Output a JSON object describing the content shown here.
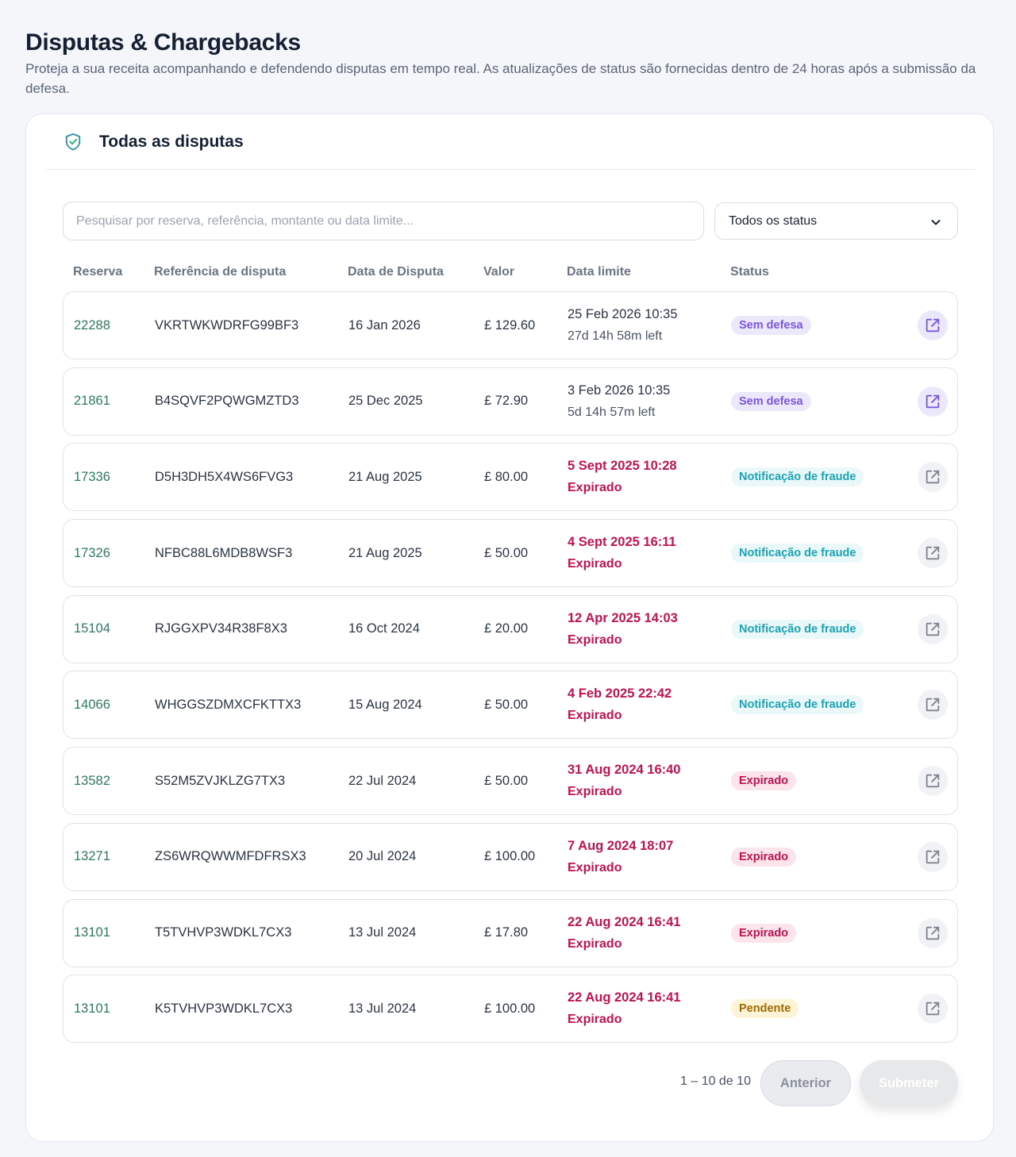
{
  "header": {
    "title": "Disputas & Chargebacks",
    "subtitle": "Proteja a sua receita acompanhando e defendendo disputas em tempo real. As atualizações de status são fornecidas dentro de 24 horas após a submissão da defesa."
  },
  "card": {
    "title": "Todas as disputas",
    "icon": "shield-check-icon"
  },
  "search": {
    "placeholder": "Pesquisar por reserva, referência, montante ou data limite...",
    "value": ""
  },
  "status_filter": {
    "selected": "Todos os status"
  },
  "columns": {
    "reserva": "Reserva",
    "referencia": "Referência de disputa",
    "data": "Data de Disputa",
    "valor": "Valor",
    "limite": "Data limite",
    "status": "Status"
  },
  "colors": {
    "accent_green": "#2d7a5f",
    "expired_red": "#c0134f",
    "violet": "#7b57e0",
    "teal": "#1ba4b5",
    "amber": "#a06a00"
  },
  "rows": [
    {
      "reserva": "22288",
      "referencia": "VKRTWKWDRFG99BF3",
      "data": "16 Jan 2026",
      "valor": "£ 129.60",
      "limite": "25 Feb 2026 10:35",
      "restante": "27d 14h 58m left",
      "expired": false,
      "status": "Sem defesa",
      "status_kind": "none"
    },
    {
      "reserva": "21861",
      "referencia": "B4SQVF2PQWGMZTD3",
      "data": "25 Dec 2025",
      "valor": "£ 72.90",
      "limite": "3 Feb 2026 10:35",
      "restante": "5d 14h 57m left",
      "expired": false,
      "status": "Sem defesa",
      "status_kind": "none"
    },
    {
      "reserva": "17336",
      "referencia": "D5H3DH5X4WS6FVG3",
      "data": "21 Aug 2025",
      "valor": "£ 80.00",
      "limite": "5 Sept 2025 10:28",
      "restante": "Expirado",
      "expired": true,
      "status": "Notificação de fraude",
      "status_kind": "fraud"
    },
    {
      "reserva": "17326",
      "referencia": "NFBC88L6MDB8WSF3",
      "data": "21 Aug 2025",
      "valor": "£ 50.00",
      "limite": "4 Sept 2025 16:11",
      "restante": "Expirado",
      "expired": true,
      "status": "Notificação de fraude",
      "status_kind": "fraud"
    },
    {
      "reserva": "15104",
      "referencia": "RJGGXPV34R38F8X3",
      "data": "16 Oct 2024",
      "valor": "£ 20.00",
      "limite": "12 Apr 2025 14:03",
      "restante": "Expirado",
      "expired": true,
      "status": "Notificação de fraude",
      "status_kind": "fraud"
    },
    {
      "reserva": "14066",
      "referencia": "WHGGSZDMXCFKTTX3",
      "data": "15 Aug 2024",
      "valor": "£ 50.00",
      "limite": "4 Feb 2025 22:42",
      "restante": "Expirado",
      "expired": true,
      "status": "Notificação de fraude",
      "status_kind": "fraud"
    },
    {
      "reserva": "13582",
      "referencia": "S52M5ZVJKLZG7TX3",
      "data": "22 Jul 2024",
      "valor": "£ 50.00",
      "limite": "31 Aug 2024 16:40",
      "restante": "Expirado",
      "expired": true,
      "status": "Expirado",
      "status_kind": "expired"
    },
    {
      "reserva": "13271",
      "referencia": "ZS6WRQWWMFDFRSX3",
      "data": "20 Jul 2024",
      "valor": "£ 100.00",
      "limite": "7 Aug 2024 18:07",
      "restante": "Expirado",
      "expired": true,
      "status": "Expirado",
      "status_kind": "expired"
    },
    {
      "reserva": "13101",
      "referencia": "T5TVHVP3WDKL7CX3",
      "data": "13 Jul 2024",
      "valor": "£ 17.80",
      "limite": "22 Aug 2024 16:41",
      "restante": "Expirado",
      "expired": true,
      "status": "Expirado",
      "status_kind": "expired"
    },
    {
      "reserva": "13101",
      "referencia": "K5TVHVP3WDKL7CX3",
      "data": "13 Jul 2024",
      "valor": "£ 100.00",
      "limite": "22 Aug 2024 16:41",
      "restante": "Expirado",
      "expired": true,
      "status": "Pendente",
      "status_kind": "pending"
    }
  ],
  "pagination": {
    "range": "1 – 10 de 10",
    "prev_label": "Anterior",
    "submit_label": "Submeter"
  }
}
